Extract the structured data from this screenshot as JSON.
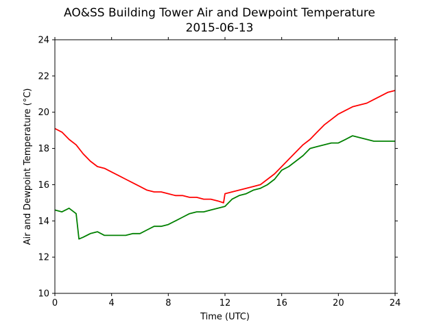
{
  "chart_data": {
    "type": "line",
    "title": "AO&SS Building Tower Air and Dewpoint Temperature",
    "subtitle": "2015-06-13",
    "xlabel": "Time (UTC)",
    "ylabel": "Air and Dewpoint Temperature (°C)",
    "xlim": [
      0,
      24
    ],
    "ylim": [
      10,
      24
    ],
    "xticks": [
      0,
      4,
      8,
      12,
      16,
      20,
      24
    ],
    "yticks": [
      10,
      12,
      14,
      16,
      18,
      20,
      22,
      24
    ],
    "grid": false,
    "legend": "none",
    "series": [
      {
        "color": "#ff0000",
        "x": [
          0,
          0.5,
          1,
          1.5,
          2,
          2.5,
          3,
          3.5,
          4,
          4.5,
          5,
          5.5,
          6,
          6.5,
          7,
          7.5,
          8,
          8.5,
          9,
          9.5,
          10,
          10.5,
          11,
          11.5,
          11.9,
          12,
          12.5,
          13,
          13.5,
          14,
          14.5,
          15,
          15.5,
          16,
          16.5,
          17,
          17.5,
          18,
          18.5,
          19,
          19.5,
          20,
          20.5,
          21,
          21.5,
          22,
          22.5,
          23,
          23.5,
          24
        ],
        "y": [
          19.1,
          18.9,
          18.5,
          18.2,
          17.7,
          17.3,
          17.0,
          16.9,
          16.7,
          16.5,
          16.3,
          16.1,
          15.9,
          15.7,
          15.6,
          15.6,
          15.5,
          15.4,
          15.4,
          15.3,
          15.3,
          15.2,
          15.2,
          15.1,
          15.0,
          15.5,
          15.6,
          15.7,
          15.8,
          15.9,
          16.0,
          16.3,
          16.6,
          17.0,
          17.4,
          17.8,
          18.2,
          18.5,
          18.9,
          19.3,
          19.6,
          19.9,
          20.1,
          20.3,
          20.4,
          20.5,
          20.7,
          20.9,
          21.1,
          21.2
        ]
      },
      {
        "color": "#008000",
        "x": [
          0,
          0.5,
          1,
          1.5,
          1.7,
          2,
          2.5,
          3,
          3.5,
          4,
          4.5,
          5,
          5.5,
          6,
          6.5,
          7,
          7.5,
          8,
          8.5,
          9,
          9.5,
          10,
          10.5,
          11,
          11.5,
          12,
          12.5,
          13,
          13.5,
          14,
          14.5,
          15,
          15.5,
          16,
          16.5,
          17,
          17.5,
          18,
          18.5,
          19,
          19.5,
          20,
          20.5,
          21,
          21.5,
          22,
          22.5,
          23,
          23.5,
          24
        ],
        "y": [
          14.6,
          14.5,
          14.7,
          14.4,
          13.0,
          13.1,
          13.3,
          13.4,
          13.2,
          13.2,
          13.2,
          13.2,
          13.3,
          13.3,
          13.5,
          13.7,
          13.7,
          13.8,
          14.0,
          14.2,
          14.4,
          14.5,
          14.5,
          14.6,
          14.7,
          14.8,
          15.2,
          15.4,
          15.5,
          15.7,
          15.8,
          16.0,
          16.3,
          16.8,
          17.0,
          17.3,
          17.6,
          18.0,
          18.1,
          18.2,
          18.3,
          18.3,
          18.5,
          18.7,
          18.6,
          18.5,
          18.4,
          18.4,
          18.4,
          18.4
        ]
      }
    ]
  }
}
